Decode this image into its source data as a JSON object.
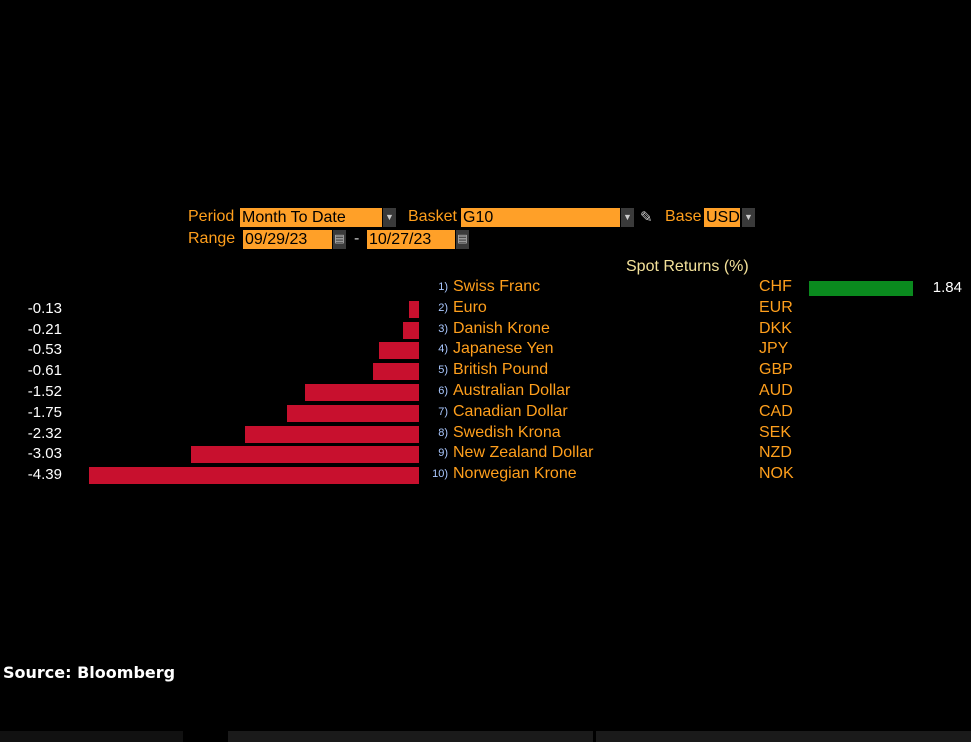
{
  "controls": {
    "period_label": "Period",
    "period_value": "Month To Date",
    "basket_label": "Basket",
    "basket_value": "G10",
    "base_label": "Base",
    "base_value": "USD",
    "range_label": "Range",
    "range_start": "09/29/23",
    "range_sep": "-",
    "range_end": "10/27/23"
  },
  "chart_data": {
    "type": "bar",
    "title": "Spot Returns (%)",
    "orientation": "horizontal",
    "rows": [
      {
        "idx": "1)",
        "name": "Swiss Franc",
        "code": "CHF",
        "value": 1.84,
        "label": "1.84"
      },
      {
        "idx": "2)",
        "name": "Euro",
        "code": "EUR",
        "value": -0.13,
        "label": "-0.13"
      },
      {
        "idx": "3)",
        "name": "Danish Krone",
        "code": "DKK",
        "value": -0.21,
        "label": "-0.21"
      },
      {
        "idx": "4)",
        "name": "Japanese Yen",
        "code": "JPY",
        "value": -0.53,
        "label": "-0.53"
      },
      {
        "idx": "5)",
        "name": "British Pound",
        "code": "GBP",
        "value": -0.61,
        "label": "-0.61"
      },
      {
        "idx": "6)",
        "name": "Australian Dollar",
        "code": "AUD",
        "value": -1.52,
        "label": "-1.52"
      },
      {
        "idx": "7)",
        "name": "Canadian Dollar",
        "code": "CAD",
        "value": -1.75,
        "label": "-1.75"
      },
      {
        "idx": "8)",
        "name": "Swedish Krona",
        "code": "SEK",
        "value": -2.32,
        "label": "-2.32"
      },
      {
        "idx": "9)",
        "name": "New Zealand Dollar",
        "code": "NZD",
        "value": -3.03,
        "label": "-3.03"
      },
      {
        "idx": "10)",
        "name": "Norwegian Krone",
        "code": "NOK",
        "value": -4.39,
        "label": "-4.39"
      }
    ],
    "colors": {
      "positive": "#0a8a1e",
      "negative": "#c8102e"
    }
  },
  "footer": {
    "source": "Source: Bloomberg"
  }
}
